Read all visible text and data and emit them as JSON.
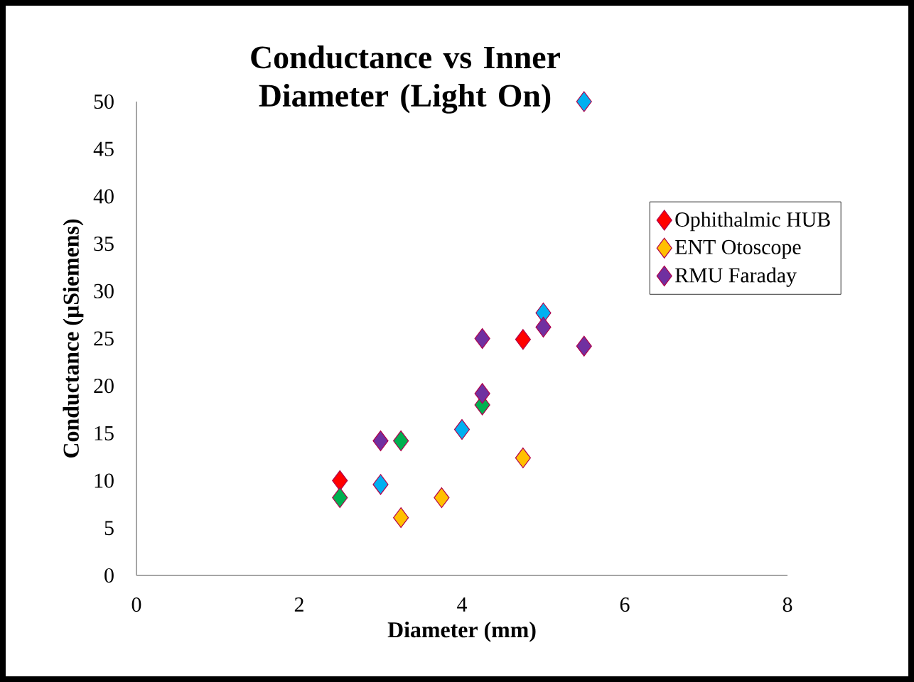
{
  "chart_data": {
    "type": "scatter",
    "title": "Conductance vs Inner Diameter (Light On)",
    "xlabel": "Diameter (mm)",
    "ylabel": "Conductance (µSiemens)",
    "xlim": [
      0,
      8
    ],
    "ylim": [
      0,
      50
    ],
    "xticks": [
      0,
      2,
      4,
      6,
      8
    ],
    "yticks": [
      0,
      5,
      10,
      15,
      20,
      25,
      30,
      35,
      40,
      45,
      50
    ],
    "marker": "diamond",
    "legend": "right",
    "series": [
      {
        "name": "Ophithalmic HUB",
        "color": "#ff0000",
        "x": [
          2.5,
          4,
          4.75
        ],
        "values": [
          10,
          null,
          24.9
        ]
      },
      {
        "name": "ENT Otoscope",
        "color": "#ffc000",
        "x": [
          3.25,
          3.75,
          4.75
        ],
        "values": [
          6.1,
          8.2,
          12.4
        ]
      },
      {
        "color": "#00b050",
        "x": [
          2.5,
          3.25,
          4.25
        ],
        "values": [
          8.2,
          14.2,
          18.0
        ]
      },
      {
        "color": "#00b0f0",
        "x": [
          3,
          4,
          5,
          5.5
        ],
        "values": [
          9.6,
          15.4,
          27.7,
          50
        ]
      },
      {
        "name": "RMU Faraday",
        "color": "#7030a0",
        "x": [
          3,
          4.25,
          4.25,
          5,
          5.5
        ],
        "values": [
          14.2,
          25.0,
          19.2,
          26.2,
          24.2
        ]
      }
    ]
  }
}
